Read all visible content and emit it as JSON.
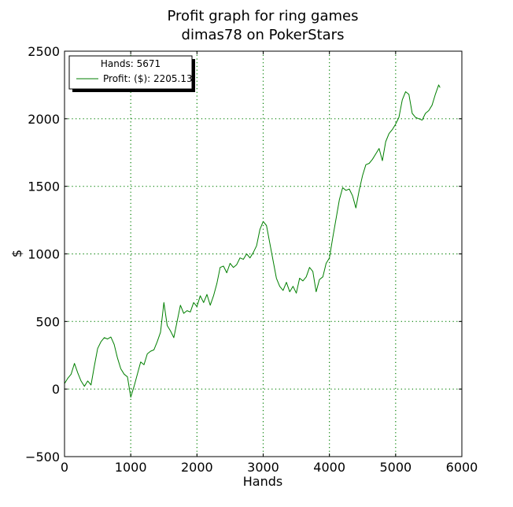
{
  "chart_data": {
    "type": "line",
    "title_line1": "Profit graph for ring games",
    "title_line2": "dimas78 on PokerStars",
    "xlabel": "Hands",
    "ylabel": "$",
    "xlim": [
      0,
      6000
    ],
    "ylim": [
      -500,
      2500
    ],
    "xticks": [
      0,
      1000,
      2000,
      3000,
      4000,
      5000,
      6000
    ],
    "yticks": [
      -500,
      0,
      500,
      1000,
      1500,
      2000,
      2500
    ],
    "grid": true,
    "legend": {
      "placement": "top-left",
      "header": "Hands: 5671",
      "entry": "Profit: ($): 2205.13"
    },
    "colors": {
      "line": "#007f00",
      "grid": "#007f00"
    },
    "series": [
      {
        "name": "Profit: ($): 2205.13",
        "x": [
          0,
          50,
          100,
          150,
          200,
          250,
          300,
          350,
          400,
          450,
          500,
          550,
          600,
          650,
          700,
          750,
          800,
          850,
          900,
          950,
          1000,
          1050,
          1100,
          1150,
          1200,
          1250,
          1300,
          1350,
          1400,
          1450,
          1500,
          1550,
          1600,
          1650,
          1700,
          1750,
          1800,
          1850,
          1900,
          1950,
          2000,
          2050,
          2100,
          2150,
          2200,
          2250,
          2300,
          2350,
          2400,
          2450,
          2500,
          2550,
          2600,
          2650,
          2700,
          2750,
          2800,
          2850,
          2900,
          2950,
          3000,
          3050,
          3100,
          3150,
          3200,
          3250,
          3300,
          3350,
          3400,
          3450,
          3500,
          3550,
          3600,
          3650,
          3700,
          3750,
          3800,
          3850,
          3900,
          3950,
          4000,
          4050,
          4100,
          4150,
          4200,
          4250,
          4300,
          4350,
          4400,
          4450,
          4500,
          4550,
          4600,
          4650,
          4700,
          4750,
          4800,
          4850,
          4900,
          4950,
          5000,
          5050,
          5100,
          5150,
          5200,
          5250,
          5300,
          5350,
          5400,
          5450,
          5500,
          5550,
          5600,
          5650,
          5671
        ],
        "y": [
          40,
          80,
          110,
          190,
          120,
          60,
          20,
          60,
          30,
          170,
          300,
          350,
          380,
          370,
          385,
          330,
          230,
          150,
          110,
          90,
          -60,
          20,
          110,
          200,
          180,
          260,
          280,
          290,
          350,
          420,
          640,
          470,
          430,
          380,
          500,
          620,
          560,
          580,
          570,
          640,
          610,
          690,
          640,
          700,
          620,
          690,
          780,
          900,
          910,
          860,
          930,
          900,
          920,
          970,
          960,
          1000,
          970,
          1010,
          1060,
          1180,
          1240,
          1210,
          1080,
          950,
          820,
          760,
          730,
          790,
          720,
          760,
          710,
          820,
          800,
          830,
          900,
          870,
          720,
          810,
          830,
          930,
          970,
          1120,
          1260,
          1400,
          1490,
          1470,
          1480,
          1430,
          1340,
          1470,
          1580,
          1660,
          1670,
          1700,
          1740,
          1780,
          1690,
          1830,
          1890,
          1920,
          1960,
          2010,
          2140,
          2200,
          2180,
          2040,
          2010,
          2000,
          1990,
          2040,
          2060,
          2100,
          2180,
          2250,
          2230
        ]
      }
    ]
  }
}
